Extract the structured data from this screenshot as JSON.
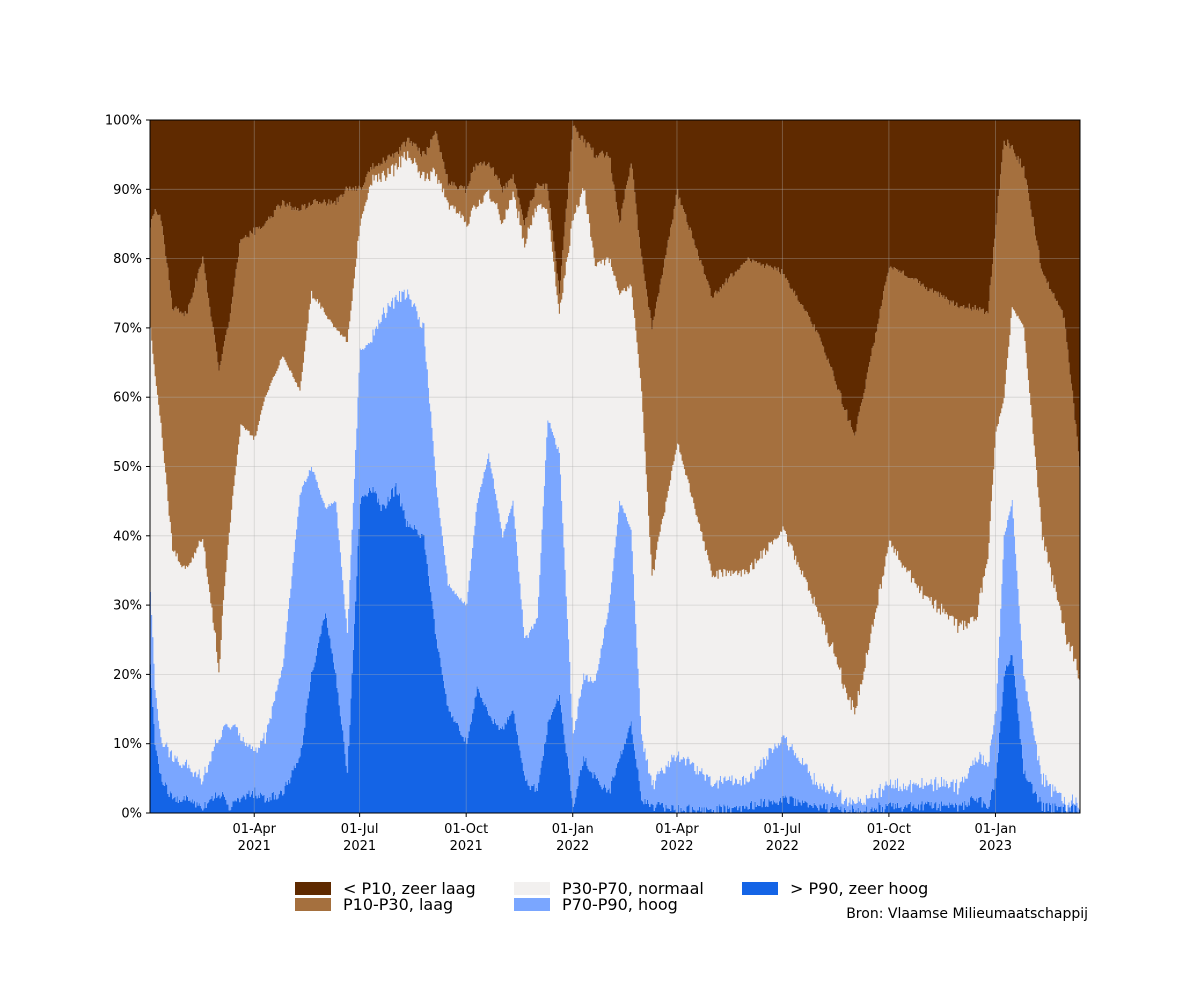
{
  "chart_data": {
    "type": "area",
    "stacked": true,
    "x_start": "2021-01-01",
    "x_end": "2023-03-15",
    "ylim": [
      0,
      100
    ],
    "y_ticks": [
      "0%",
      "10%",
      "20%",
      "30%",
      "40%",
      "50%",
      "60%",
      "70%",
      "80%",
      "90%",
      "100%"
    ],
    "x_ticks": [
      {
        "date": "2021-04-01",
        "label1": "01-Apr",
        "label2": "2021"
      },
      {
        "date": "2021-07-01",
        "label1": "01-Jul",
        "label2": "2021"
      },
      {
        "date": "2021-10-01",
        "label1": "01-Oct",
        "label2": "2021"
      },
      {
        "date": "2022-01-01",
        "label1": "01-Jan",
        "label2": "2022"
      },
      {
        "date": "2022-04-01",
        "label1": "01-Apr",
        "label2": "2022"
      },
      {
        "date": "2022-07-01",
        "label1": "01-Jul",
        "label2": "2022"
      },
      {
        "date": "2022-10-01",
        "label1": "01-Oct",
        "label2": "2022"
      },
      {
        "date": "2023-01-01",
        "label1": "01-Jan",
        "label2": "2023"
      }
    ],
    "grid": true,
    "series": [
      {
        "name": "> P90, zeer hoog",
        "color": "#1464e6",
        "x": [
          "2021-01-01",
          "2021-01-05",
          "2021-01-10",
          "2021-01-20",
          "2021-02-01",
          "2021-02-15",
          "2021-03-01",
          "2021-03-10",
          "2021-03-20",
          "2021-04-01",
          "2021-04-10",
          "2021-04-25",
          "2021-05-10",
          "2021-05-20",
          "2021-06-01",
          "2021-06-10",
          "2021-06-20",
          "2021-07-01",
          "2021-07-10",
          "2021-07-20",
          "2021-08-01",
          "2021-08-10",
          "2021-08-25",
          "2021-09-05",
          "2021-09-15",
          "2021-10-01",
          "2021-10-10",
          "2021-10-20",
          "2021-11-01",
          "2021-11-10",
          "2021-11-20",
          "2021-12-01",
          "2021-12-10",
          "2021-12-20",
          "2022-01-01",
          "2022-01-10",
          "2022-01-20",
          "2022-02-01",
          "2022-02-10",
          "2022-02-20",
          "2022-03-01",
          "2022-03-10",
          "2022-04-01",
          "2022-05-01",
          "2022-06-01",
          "2022-07-01",
          "2022-08-01",
          "2022-09-01",
          "2022-10-01",
          "2022-11-01",
          "2022-12-01",
          "2022-12-15",
          "2022-12-25",
          "2023-01-01",
          "2023-01-08",
          "2023-01-15",
          "2023-01-25",
          "2023-02-10",
          "2023-03-01",
          "2023-03-15"
        ],
        "values": [
          21,
          10,
          5,
          2,
          2,
          1,
          3,
          1,
          2,
          3,
          2,
          3,
          8,
          20,
          29,
          20,
          6,
          45,
          47,
          44,
          47,
          42,
          40,
          25,
          15,
          10,
          18,
          14,
          12,
          15,
          5,
          3,
          13,
          17,
          1,
          8,
          5,
          3,
          8,
          13,
          2,
          1,
          0.5,
          0.5,
          1,
          2,
          1,
          0.3,
          1,
          1,
          1,
          2,
          1,
          5,
          20,
          23,
          6,
          1,
          0.5,
          0.5
        ]
      },
      {
        "name": "P70-P90, hoog",
        "color": "#7aa6ff",
        "x": [
          "2021-01-01",
          "2021-01-05",
          "2021-01-10",
          "2021-01-20",
          "2021-02-01",
          "2021-02-15",
          "2021-03-01",
          "2021-03-10",
          "2021-03-20",
          "2021-04-01",
          "2021-04-10",
          "2021-04-25",
          "2021-05-10",
          "2021-05-20",
          "2021-06-01",
          "2021-06-10",
          "2021-06-20",
          "2021-07-01",
          "2021-07-10",
          "2021-07-20",
          "2021-08-01",
          "2021-08-10",
          "2021-08-25",
          "2021-09-05",
          "2021-09-15",
          "2021-10-01",
          "2021-10-10",
          "2021-10-20",
          "2021-11-01",
          "2021-11-10",
          "2021-11-20",
          "2021-12-01",
          "2021-12-10",
          "2021-12-20",
          "2022-01-01",
          "2022-01-10",
          "2022-01-20",
          "2022-02-01",
          "2022-02-10",
          "2022-02-20",
          "2022-03-01",
          "2022-03-10",
          "2022-04-01",
          "2022-05-01",
          "2022-06-01",
          "2022-07-01",
          "2022-08-01",
          "2022-09-01",
          "2022-10-01",
          "2022-11-01",
          "2022-12-01",
          "2022-12-15",
          "2022-12-25",
          "2023-01-01",
          "2023-01-08",
          "2023-01-15",
          "2023-01-25",
          "2023-02-10",
          "2023-03-01",
          "2023-03-15"
        ],
        "values": [
          11,
          8,
          6,
          6,
          5,
          4,
          8,
          12,
          9,
          6,
          9,
          18,
          38,
          30,
          15,
          25,
          20,
          22,
          21,
          28,
          27,
          33,
          30,
          22,
          18,
          20,
          27,
          38,
          28,
          30,
          20,
          25,
          44,
          35,
          10,
          12,
          14,
          27,
          37,
          28,
          9,
          3,
          8,
          4,
          4,
          9,
          3,
          1,
          3,
          3,
          3,
          6,
          6,
          10,
          20,
          22,
          14,
          4,
          1,
          0.5
        ]
      },
      {
        "name": "P30-P70, normaal",
        "color": "#f2f0ef",
        "x": [
          "2021-01-01",
          "2021-01-05",
          "2021-01-10",
          "2021-01-20",
          "2021-02-01",
          "2021-02-15",
          "2021-03-01",
          "2021-03-10",
          "2021-03-20",
          "2021-04-01",
          "2021-04-10",
          "2021-04-25",
          "2021-05-10",
          "2021-05-20",
          "2021-06-01",
          "2021-06-10",
          "2021-06-20",
          "2021-07-01",
          "2021-07-10",
          "2021-07-20",
          "2021-08-01",
          "2021-08-10",
          "2021-08-25",
          "2021-09-05",
          "2021-09-15",
          "2021-10-01",
          "2021-10-10",
          "2021-10-20",
          "2021-11-01",
          "2021-11-10",
          "2021-11-20",
          "2021-12-01",
          "2021-12-10",
          "2021-12-20",
          "2022-01-01",
          "2022-01-10",
          "2022-01-20",
          "2022-02-01",
          "2022-02-10",
          "2022-02-20",
          "2022-03-01",
          "2022-03-10",
          "2022-04-01",
          "2022-05-01",
          "2022-06-01",
          "2022-07-01",
          "2022-08-01",
          "2022-09-01",
          "2022-10-01",
          "2022-11-01",
          "2022-12-01",
          "2022-12-15",
          "2022-12-25",
          "2023-01-01",
          "2023-01-08",
          "2023-01-15",
          "2023-01-25",
          "2023-02-10",
          "2023-03-01",
          "2023-03-15"
        ],
        "values": [
          38,
          45,
          45,
          30,
          28,
          35,
          10,
          28,
          45,
          45,
          49,
          45,
          15,
          25,
          28,
          25,
          42,
          18,
          23,
          20,
          19,
          20,
          22,
          45,
          55,
          55,
          43,
          38,
          45,
          45,
          57,
          60,
          30,
          20,
          75,
          70,
          60,
          50,
          30,
          35,
          50,
          30,
          45,
          30,
          30,
          30,
          25,
          13,
          35,
          27,
          23,
          20,
          30,
          40,
          20,
          28,
          50,
          35,
          25,
          18
        ]
      },
      {
        "name": "P10-P30, laag",
        "color": "#a5703e",
        "x": [
          "2021-01-01",
          "2021-01-05",
          "2021-01-10",
          "2021-01-20",
          "2021-02-01",
          "2021-02-15",
          "2021-03-01",
          "2021-03-10",
          "2021-03-20",
          "2021-04-01",
          "2021-04-10",
          "2021-04-25",
          "2021-05-10",
          "2021-05-20",
          "2021-06-01",
          "2021-06-10",
          "2021-06-20",
          "2021-07-01",
          "2021-07-10",
          "2021-07-20",
          "2021-08-01",
          "2021-08-10",
          "2021-08-25",
          "2021-09-05",
          "2021-09-15",
          "2021-10-01",
          "2021-10-10",
          "2021-10-20",
          "2021-11-01",
          "2021-11-10",
          "2021-11-20",
          "2021-12-01",
          "2021-12-10",
          "2021-12-20",
          "2022-01-01",
          "2022-01-10",
          "2022-01-20",
          "2022-02-01",
          "2022-02-10",
          "2022-02-20",
          "2022-03-01",
          "2022-03-10",
          "2022-04-01",
          "2022-05-01",
          "2022-06-01",
          "2022-07-01",
          "2022-08-01",
          "2022-09-01",
          "2022-10-01",
          "2022-11-01",
          "2022-12-01",
          "2022-12-15",
          "2022-12-25",
          "2023-01-01",
          "2023-01-08",
          "2023-01-15",
          "2023-01-25",
          "2023-02-10",
          "2023-03-01",
          "2023-03-15"
        ],
        "values": [
          15,
          24,
          30,
          35,
          37,
          40,
          43,
          30,
          27,
          30,
          25,
          22,
          26,
          13,
          16,
          18,
          22,
          5,
          2,
          2,
          2,
          2,
          3,
          6,
          3,
          5,
          6,
          4,
          5,
          2,
          3,
          3,
          3,
          3,
          13,
          7,
          16,
          15,
          10,
          18,
          19,
          36,
          36,
          40,
          45,
          37,
          40,
          40,
          40,
          45,
          46,
          45,
          35,
          30,
          37,
          23,
          23,
          38,
          45,
          30
        ]
      },
      {
        "name": "< P10, zeer laag",
        "color": "#5f2a00",
        "x": [
          "2021-01-01",
          "2021-01-05",
          "2021-01-10",
          "2021-01-20",
          "2021-02-01",
          "2021-02-15",
          "2021-03-01",
          "2021-03-10",
          "2021-03-20",
          "2021-04-01",
          "2021-04-10",
          "2021-04-25",
          "2021-05-10",
          "2021-05-20",
          "2021-06-01",
          "2021-06-10",
          "2021-06-20",
          "2021-07-01",
          "2021-07-10",
          "2021-07-20",
          "2021-08-01",
          "2021-08-10",
          "2021-08-25",
          "2021-09-05",
          "2021-09-15",
          "2021-10-01",
          "2021-10-10",
          "2021-10-20",
          "2021-11-01",
          "2021-11-10",
          "2021-11-20",
          "2021-12-01",
          "2021-12-10",
          "2021-12-20",
          "2022-01-01",
          "2022-01-10",
          "2022-01-20",
          "2022-02-01",
          "2022-02-10",
          "2022-02-20",
          "2022-03-01",
          "2022-03-10",
          "2022-04-01",
          "2022-05-01",
          "2022-06-01",
          "2022-07-01",
          "2022-08-01",
          "2022-09-01",
          "2022-10-01",
          "2022-11-01",
          "2022-12-01",
          "2022-12-15",
          "2022-12-25",
          "2023-01-01",
          "2023-01-08",
          "2023-01-15",
          "2023-01-25",
          "2023-02-10",
          "2023-03-01",
          "2023-03-15"
        ],
        "values": [
          15,
          13,
          14,
          27,
          28,
          20,
          36,
          29,
          17,
          16,
          15,
          12,
          13,
          12,
          12,
          12,
          10,
          10,
          7,
          6,
          5,
          3,
          5,
          2,
          9,
          10,
          6,
          6,
          10,
          8,
          15,
          9,
          10,
          25,
          1,
          3,
          5,
          5,
          15,
          6,
          20,
          30,
          10.5,
          25.5,
          20,
          22,
          31,
          45.7,
          21,
          24,
          27,
          27,
          28,
          15,
          3,
          4,
          7,
          22,
          28.5,
          51
        ]
      }
    ]
  },
  "legend": {
    "items": [
      {
        "label": "< P10, zeer laag",
        "color": "#5f2a00"
      },
      {
        "label": "P10-P30, laag",
        "color": "#a5703e"
      },
      {
        "label": "P30-P70, normaal",
        "color": "#f2f0ef"
      },
      {
        "label": "P70-P90, hoog",
        "color": "#7aa6ff"
      },
      {
        "label": "> P90, zeer hoog",
        "color": "#1464e6"
      }
    ]
  },
  "source": "Bron: Vlaamse Milieumaatschappij"
}
